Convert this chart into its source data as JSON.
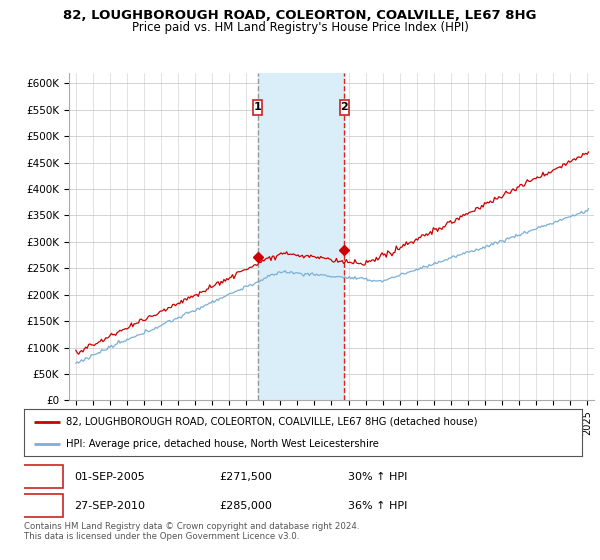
{
  "title_line1": "82, LOUGHBOROUGH ROAD, COLEORTON, COALVILLE, LE67 8HG",
  "title_line2": "Price paid vs. HM Land Registry's House Price Index (HPI)",
  "title_fontsize": 9.5,
  "subtitle_fontsize": 8.5,
  "ylabel_ticks": [
    "£0",
    "£50K",
    "£100K",
    "£150K",
    "£200K",
    "£250K",
    "£300K",
    "£350K",
    "£400K",
    "£450K",
    "£500K",
    "£550K",
    "£600K"
  ],
  "ytick_values": [
    0,
    50000,
    100000,
    150000,
    200000,
    250000,
    300000,
    350000,
    400000,
    450000,
    500000,
    550000,
    600000
  ],
  "ylim": [
    0,
    620000
  ],
  "xlim_start": 1994.6,
  "xlim_end": 2025.4,
  "marker1_x": 2005.67,
  "marker2_x": 2010.75,
  "marker1_price": 271500,
  "marker2_price": 285000,
  "marker1_label": "1",
  "marker2_label": "2",
  "shade_color": "#daeef9",
  "vline1_color": "#999999",
  "vline2_color": "#dd2222",
  "red_line_color": "#cc0000",
  "blue_line_color": "#7ab0d4",
  "background_color": "#ffffff",
  "grid_color": "#cccccc",
  "legend_line1": "82, LOUGHBOROUGH ROAD, COLEORTON, COALVILLE, LE67 8HG (detached house)",
  "legend_line2": "HPI: Average price, detached house, North West Leicestershire",
  "box1_label": "1",
  "box2_label": "2",
  "t1_date": "01-SEP-2005",
  "t1_price": "£271,500",
  "t1_hpi": "30% ↑ HPI",
  "t2_date": "27-SEP-2010",
  "t2_price": "£285,000",
  "t2_hpi": "36% ↑ HPI",
  "footer": "Contains HM Land Registry data © Crown copyright and database right 2024.\nThis data is licensed under the Open Government Licence v3.0."
}
